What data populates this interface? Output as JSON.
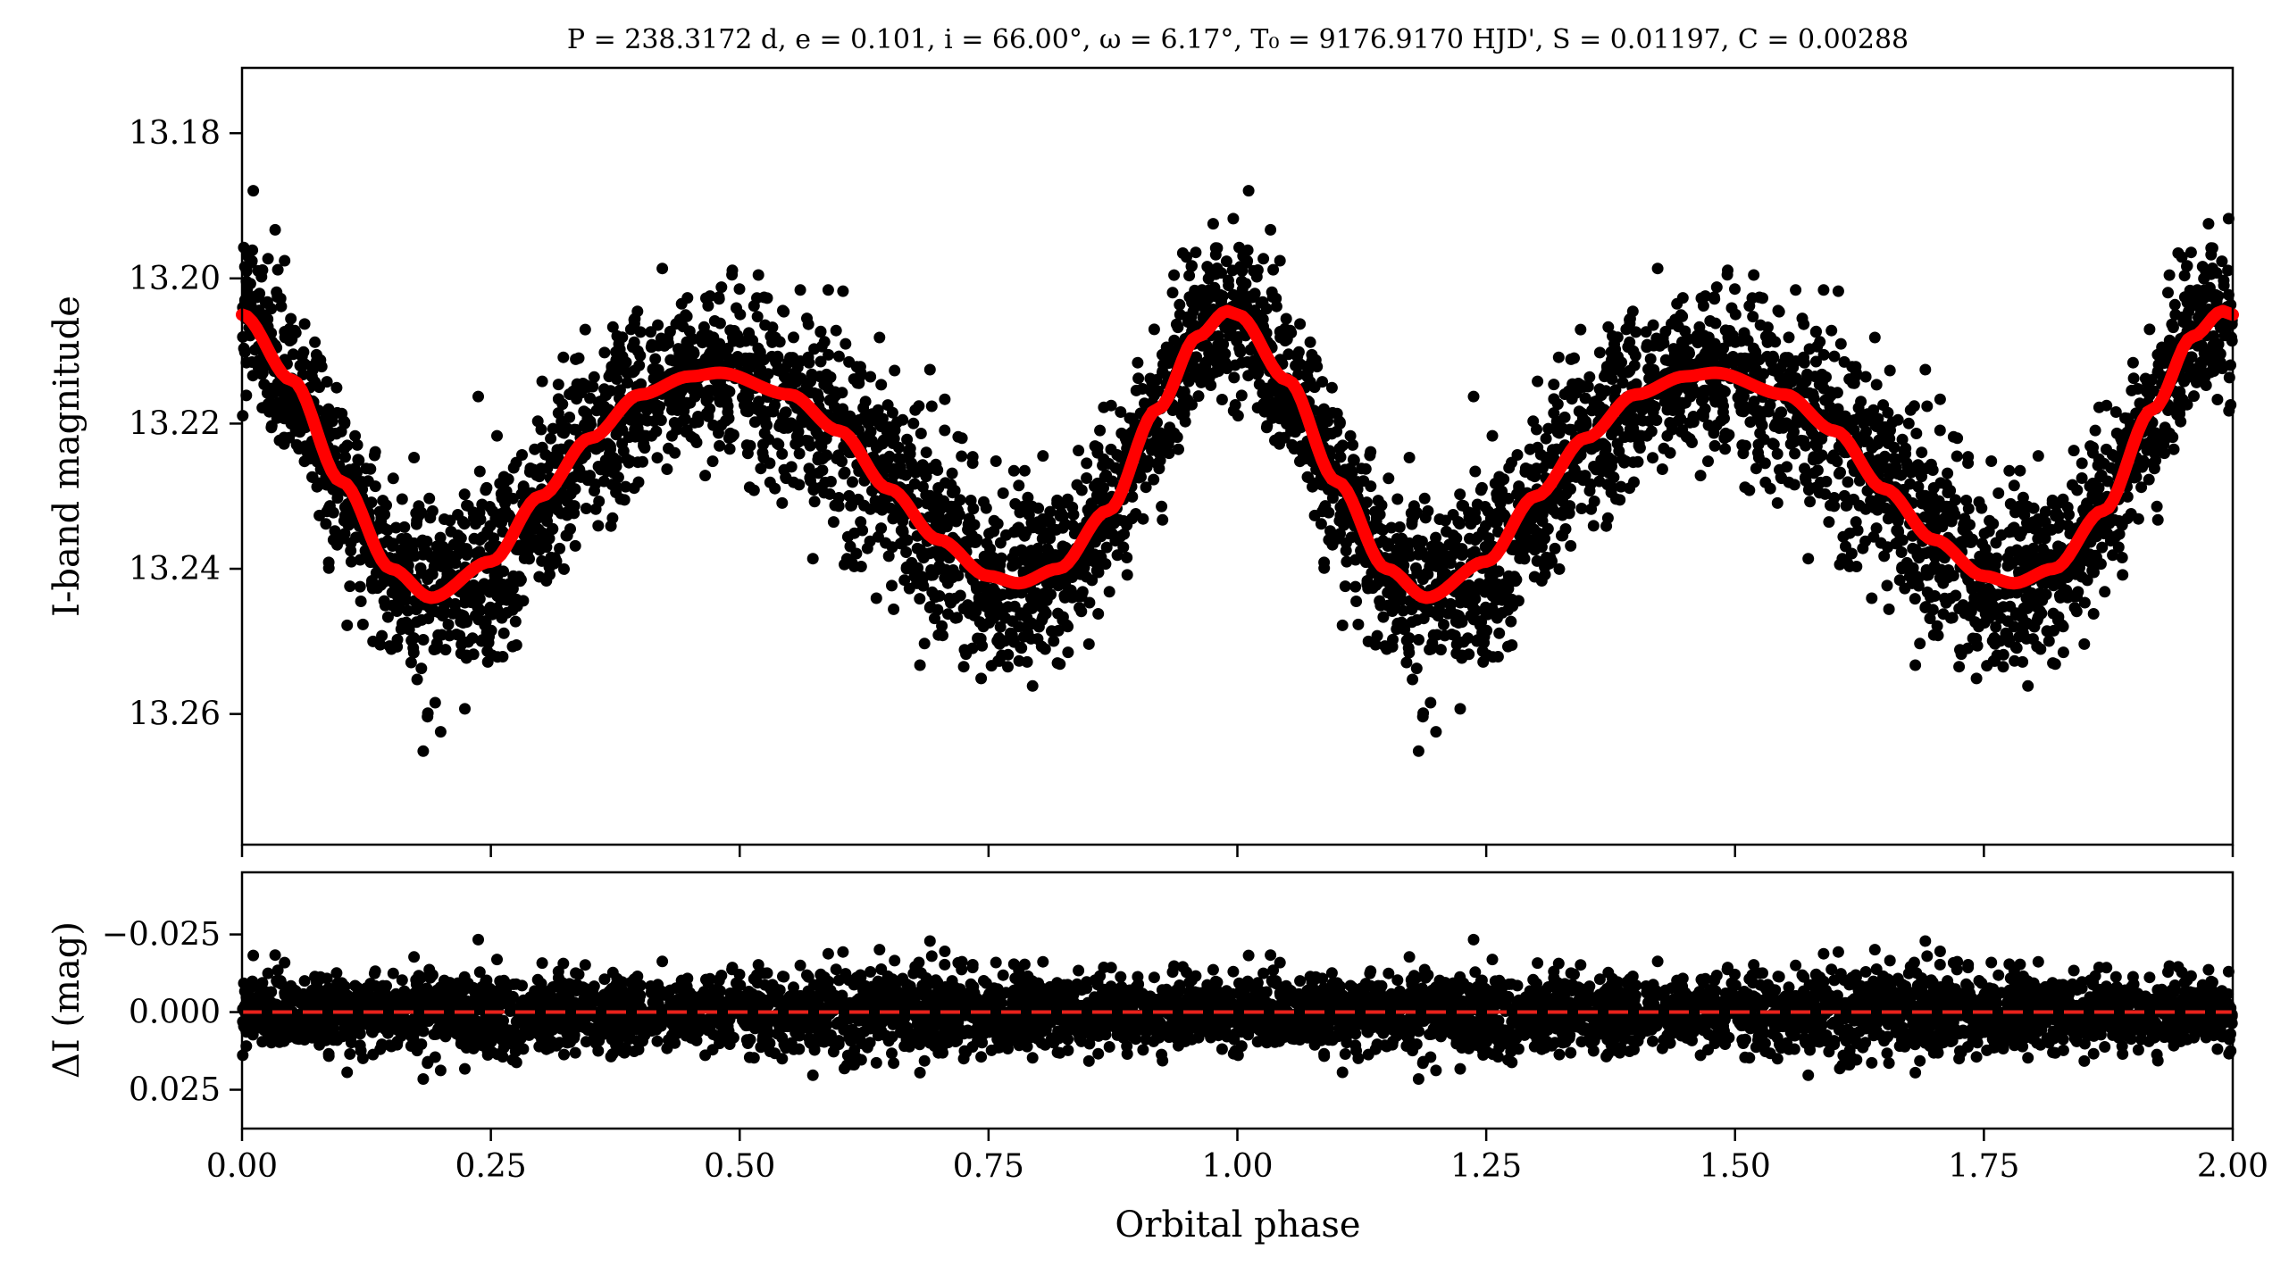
{
  "title": "P = 238.3172 d, e = 0.101, i = 66.00°, ω = 6.17°, T₀ = 9176.9170 HJD', S = 0.01197, C = 0.00288",
  "chart_data": [
    {
      "type": "scatter",
      "panel": "top",
      "ylabel": "I-band magnitude",
      "xlim": [
        0.0,
        2.0
      ],
      "ylim": [
        13.278,
        13.171
      ],
      "y_inverted": true,
      "yticks": [
        13.18,
        13.2,
        13.22,
        13.24,
        13.26
      ],
      "ytick_labels": [
        "13.18",
        "13.20",
        "13.22",
        "13.24",
        "13.26"
      ],
      "xticks": [
        0.0,
        0.25,
        0.5,
        0.75,
        1.0,
        1.25,
        1.5,
        1.75,
        2.0
      ],
      "series": [
        {
          "kind": "points",
          "color": "#000000",
          "note_scatter_sd": 0.006
        },
        {
          "kind": "model-curve",
          "color": "#ff0000",
          "x": [
            0.0,
            0.05,
            0.1,
            0.15,
            0.19,
            0.25,
            0.3,
            0.35,
            0.4,
            0.45,
            0.48,
            0.55,
            0.6,
            0.65,
            0.7,
            0.75,
            0.78,
            0.82,
            0.87,
            0.92,
            0.96,
            0.99,
            1.0,
            1.05,
            1.1,
            1.15,
            1.19,
            1.25,
            1.3,
            1.35,
            1.4,
            1.45,
            1.48,
            1.55,
            1.6,
            1.65,
            1.7,
            1.75,
            1.78,
            1.82,
            1.87,
            1.92,
            1.96,
            1.99,
            2.0
          ],
          "y": [
            13.205,
            13.214,
            13.228,
            13.24,
            13.244,
            13.239,
            13.23,
            13.222,
            13.216,
            13.2135,
            13.213,
            13.216,
            13.221,
            13.229,
            13.236,
            13.241,
            13.242,
            13.24,
            13.232,
            13.218,
            13.208,
            13.2045,
            13.205,
            13.214,
            13.228,
            13.24,
            13.244,
            13.239,
            13.23,
            13.222,
            13.216,
            13.2135,
            13.213,
            13.216,
            13.221,
            13.229,
            13.236,
            13.241,
            13.242,
            13.24,
            13.232,
            13.218,
            13.208,
            13.2045,
            13.205
          ]
        }
      ]
    },
    {
      "type": "scatter",
      "panel": "bottom",
      "xlabel": "Orbital phase",
      "ylabel": "ΔI (mag)",
      "xlim": [
        0.0,
        2.0
      ],
      "ylim": [
        0.0375,
        -0.045
      ],
      "y_inverted": true,
      "yticks": [
        -0.025,
        0.0,
        0.025
      ],
      "ytick_labels": [
        "−0.025",
        "0.000",
        "0.025"
      ],
      "xticks": [
        0.0,
        0.25,
        0.5,
        0.75,
        1.0,
        1.25,
        1.5,
        1.75,
        2.0
      ],
      "xtick_labels": [
        "0.00",
        "0.25",
        "0.50",
        "0.75",
        "1.00",
        "1.25",
        "1.50",
        "1.75",
        "2.00"
      ],
      "series": [
        {
          "kind": "points",
          "color": "#000000",
          "note_scatter_sd": 0.006
        },
        {
          "kind": "zero-line",
          "color": "#e8221b",
          "style": "dashed",
          "y": 0.0
        }
      ]
    }
  ]
}
